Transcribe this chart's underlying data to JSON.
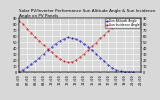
{
  "title": "Solar PV/Inverter Performance Sun Altitude Angle & Sun Incidence Angle on PV Panels",
  "blue_color": "#0000cc",
  "red_color": "#cc0000",
  "bg_color": "#d8d8d8",
  "grid_color": "#ffffff",
  "altitude_x": [
    6.0,
    6.5,
    7.0,
    7.5,
    8.0,
    8.5,
    9.0,
    9.5,
    10.0,
    10.5,
    11.0,
    11.5,
    12.0,
    12.5,
    13.0,
    13.5,
    14.0,
    14.5,
    15.0,
    15.5,
    16.0,
    16.5,
    17.0,
    17.5,
    18.0,
    18.5,
    19.0,
    19.5,
    20.0
  ],
  "altitude_y": [
    0,
    4,
    8,
    13,
    18,
    24,
    30,
    36,
    42,
    47,
    52,
    55,
    58,
    56,
    55,
    51,
    47,
    42,
    36,
    30,
    24,
    18,
    12,
    7,
    3,
    1,
    0,
    0,
    0
  ],
  "incidence_x": [
    6.0,
    6.5,
    7.0,
    7.5,
    8.0,
    8.5,
    9.0,
    9.5,
    10.0,
    10.5,
    11.0,
    11.5,
    12.0,
    12.5,
    13.0,
    13.5,
    14.0,
    14.5,
    15.0,
    15.5,
    16.0,
    16.5,
    17.0,
    17.5,
    18.0,
    18.5,
    19.0,
    19.5,
    20.0
  ],
  "incidence_y": [
    85,
    80,
    72,
    65,
    58,
    51,
    45,
    39,
    33,
    27,
    22,
    18,
    16,
    17,
    20,
    25,
    30,
    36,
    43,
    49,
    56,
    62,
    68,
    74,
    80,
    84,
    88,
    89,
    90
  ],
  "ylim": [
    0,
    90
  ],
  "xlim": [
    6,
    21
  ],
  "yticks": [
    0,
    10,
    20,
    30,
    40,
    50,
    60,
    70,
    80,
    90
  ],
  "xtick_hours": [
    6,
    7,
    8,
    9,
    10,
    11,
    12,
    13,
    14,
    15,
    16,
    17,
    18,
    19,
    20,
    21
  ],
  "title_fontsize": 3.0,
  "tick_fontsize": 2.5,
  "legend_fontsize": 2.2,
  "dot_size": 0.8,
  "linewidth": 0.5
}
